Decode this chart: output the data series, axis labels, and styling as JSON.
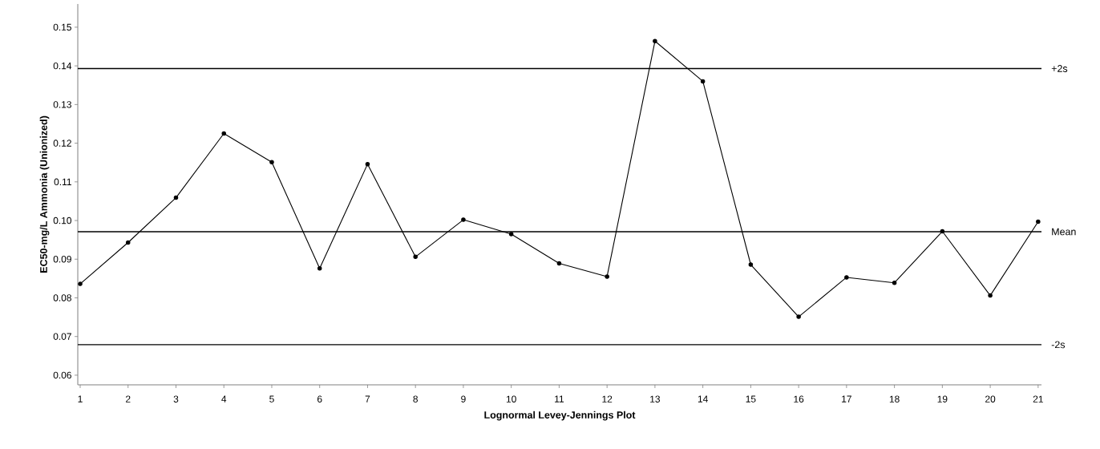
{
  "chart_data": {
    "type": "line",
    "xlabel": "Lognormal Levey-Jennings Plot",
    "ylabel": "EC50-mg/L Ammonia (Unionized)",
    "categories": [
      "1",
      "2",
      "3",
      "4",
      "5",
      "6",
      "7",
      "8",
      "9",
      "10",
      "11",
      "12",
      "13",
      "14",
      "15",
      "16",
      "17",
      "18",
      "19",
      "20",
      "21"
    ],
    "series": [
      {
        "color": "#000000",
        "values": [
          0.0836,
          0.0943,
          0.1059,
          0.1225,
          0.1151,
          0.0876,
          0.1146,
          0.0906,
          0.1002,
          0.0965,
          0.0889,
          0.0855,
          0.1464,
          0.136,
          0.0886,
          0.0751,
          0.0853,
          0.0839,
          0.0972,
          0.0806,
          0.0997
        ]
      }
    ],
    "ylim": [
      0.0575,
      0.156
    ],
    "yticks": [
      0.06,
      0.07,
      0.08,
      0.09,
      {
        "value": 0.1,
        "label": "0.10"
      },
      0.11,
      0.12,
      0.13,
      0.14,
      0.15
    ],
    "ref_lines": [
      {
        "axis": "y",
        "value": 0.1393,
        "label": "+2s"
      },
      {
        "axis": "y",
        "value": 0.0971,
        "label": "Mean"
      },
      {
        "axis": "y",
        "value": 0.0679,
        "label": "-2s"
      }
    ],
    "marker": "circle",
    "line_style": "solid",
    "grid": false
  }
}
